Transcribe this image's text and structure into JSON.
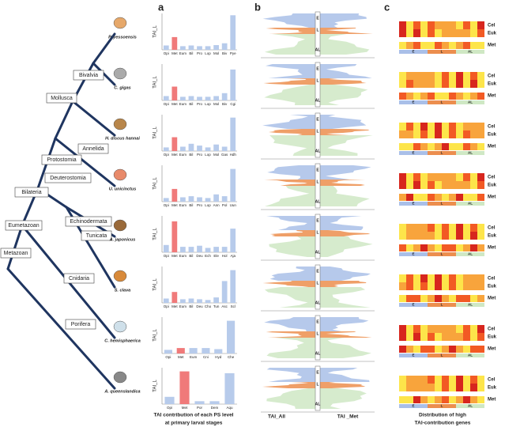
{
  "panel_labels": [
    "a",
    "b",
    "c"
  ],
  "tree": {
    "clades": [
      "Bivalvia",
      "Mollusca",
      "Annelida",
      "Protostomia",
      "Bilateria",
      "Deuterostomia",
      "Echinodermata",
      "Tunicata",
      "Eumetazoan",
      "Cnidaria",
      "Metazoan",
      "Porifera"
    ]
  },
  "chart_data": [
    {
      "type": "bar",
      "species": "P. yessoensis",
      "y_label": "TAI_L",
      "color": "#b7cbeb",
      "highlight_color": "#f07a7a",
      "highlight_index": 1,
      "ylim": [
        0,
        1
      ],
      "categories": [
        "Opi",
        "Met",
        "Eum",
        "Bil",
        "Pro",
        "Lop",
        "Mol",
        "Biv",
        "Pye"
      ],
      "values": [
        0.12,
        0.35,
        0.1,
        0.12,
        0.1,
        0.1,
        0.13,
        0.18,
        0.95
      ]
    },
    {
      "type": "bar",
      "species": "C. gigas",
      "y_label": "TAI_L",
      "color": "#b7cbeb",
      "highlight_color": "#f07a7a",
      "highlight_index": 1,
      "ylim": [
        0,
        1
      ],
      "categories": [
        "Opi",
        "Met",
        "Eum",
        "Bil",
        "Pro",
        "Lop",
        "Mol",
        "Biv",
        "Cgi"
      ],
      "values": [
        0.12,
        0.38,
        0.1,
        0.12,
        0.1,
        0.1,
        0.12,
        0.2,
        0.85
      ]
    },
    {
      "type": "bar",
      "species": "H. discus hannai",
      "y_label": "TAI_L",
      "color": "#b7cbeb",
      "highlight_color": "#f07a7a",
      "highlight_index": 1,
      "ylim": [
        0,
        1
      ],
      "categories": [
        "Opi",
        "Met",
        "Eum",
        "Bil",
        "Pro",
        "Lop",
        "Mol",
        "Gas",
        "Hdh"
      ],
      "values": [
        0.1,
        0.38,
        0.12,
        0.2,
        0.15,
        0.1,
        0.18,
        0.12,
        0.92
      ]
    },
    {
      "type": "bar",
      "species": "U. unicinctus",
      "y_label": "TAI_L",
      "color": "#b7cbeb",
      "highlight_color": "#f07a7a",
      "highlight_index": 1,
      "ylim": [
        0,
        1
      ],
      "categories": [
        "Opi",
        "Met",
        "Eum",
        "Bil",
        "Pro",
        "Lop",
        "Ann",
        "Pol",
        "Uun"
      ],
      "values": [
        0.1,
        0.35,
        0.12,
        0.15,
        0.12,
        0.1,
        0.2,
        0.15,
        0.9
      ]
    },
    {
      "type": "bar",
      "species": "A. japonicus",
      "y_label": "TAI_L",
      "color": "#b7cbeb",
      "highlight_color": "#f07a7a",
      "highlight_index": 1,
      "ylim": [
        0,
        1
      ],
      "categories": [
        "Opi",
        "Met",
        "Eum",
        "Bil",
        "Deu",
        "Ech",
        "Ele",
        "Hol",
        "Aja"
      ],
      "values": [
        0.2,
        0.85,
        0.15,
        0.15,
        0.18,
        0.12,
        0.15,
        0.15,
        0.65
      ]
    },
    {
      "type": "bar",
      "species": "S. clava",
      "y_label": "TAI_L",
      "color": "#b7cbeb",
      "highlight_color": "#f07a7a",
      "highlight_index": 1,
      "ylim": [
        0,
        1
      ],
      "categories": [
        "Opi",
        "Met",
        "Eum",
        "Bil",
        "Deu",
        "Cho",
        "Tun",
        "Asc",
        "Scl"
      ],
      "values": [
        0.12,
        0.3,
        0.1,
        0.12,
        0.1,
        0.08,
        0.15,
        0.6,
        0.9
      ]
    },
    {
      "type": "bar",
      "species": "C. hemisphaerica",
      "y_label": "TAI_L",
      "color": "#b7cbeb",
      "highlight_color": "#f07a7a",
      "highlight_index": 1,
      "ylim": [
        0,
        1
      ],
      "categories": [
        "Opi",
        "Met",
        "Eum",
        "Cni",
        "Hyd",
        "Che"
      ],
      "values": [
        0.1,
        0.15,
        0.15,
        0.15,
        0.12,
        0.9
      ]
    },
    {
      "type": "bar",
      "species": "A. queenslandica",
      "y_label": "TAI_L",
      "color": "#b7cbeb",
      "highlight_color": "#f07a7a",
      "highlight_index": 1,
      "ylim": [
        0,
        1
      ],
      "categories": [
        "Opi",
        "Met",
        "Por",
        "Dem",
        "Aqu"
      ],
      "values": [
        0.2,
        0.9,
        0.08,
        0.08,
        0.85
      ]
    }
  ],
  "panel_b": {
    "stage_labels": [
      "E",
      "L",
      "AL"
    ],
    "x_labels": [
      "TAI_All",
      "TAI _Met"
    ]
  },
  "panel_c": {
    "row_labels": [
      "Cel",
      "Euk",
      "Met"
    ],
    "stage_labels": [
      "E",
      "L",
      "AL"
    ],
    "caption": [
      "Distribution of high",
      "TAI-contribution genes"
    ]
  },
  "panel_a_caption": [
    "TAI contribution of each PS level",
    "at primary larval stages"
  ]
}
